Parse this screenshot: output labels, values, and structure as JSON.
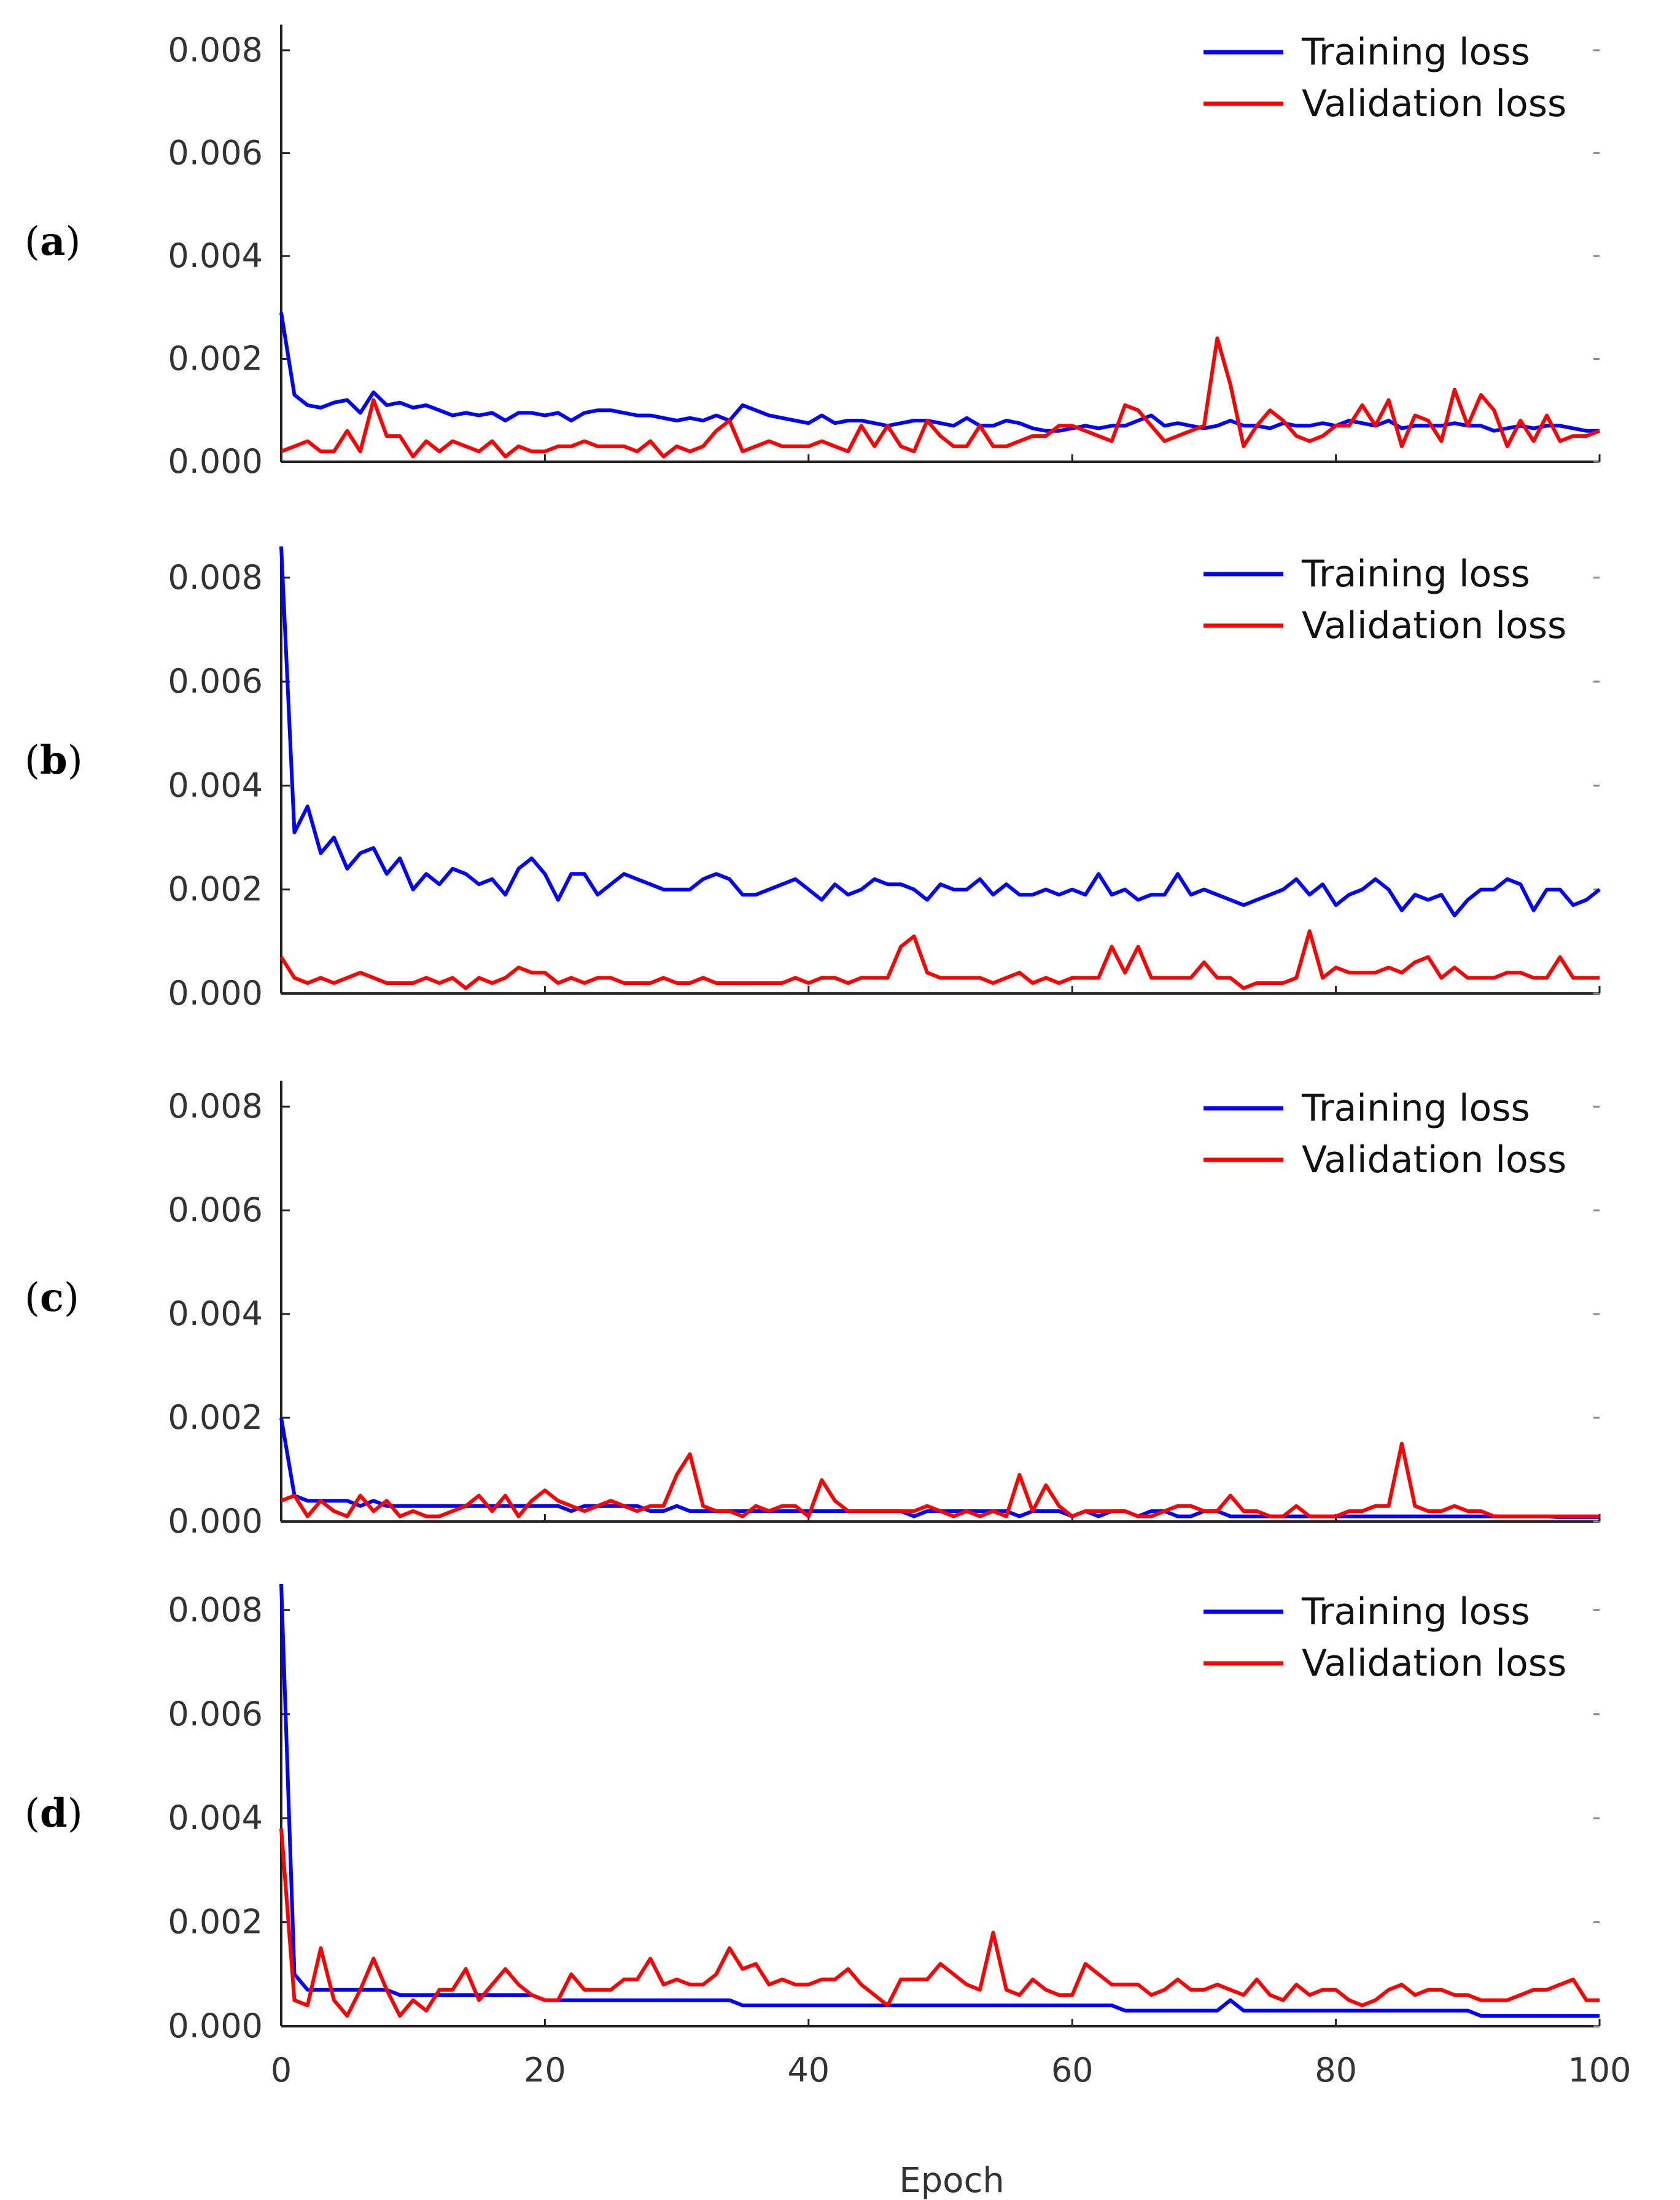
{
  "figure": {
    "x_axis_title": "Epoch",
    "colors": {
      "training": "#0000ff",
      "validation": "#ff0000",
      "axis": "#222222"
    }
  },
  "chart_data": [
    {
      "type": "line",
      "panel_label": "a",
      "xlim": [
        0,
        100
      ],
      "ylim": [
        0,
        0.0085
      ],
      "y_ticks": [
        "0.000",
        "0.002",
        "0.004",
        "0.006",
        "0.008"
      ],
      "x_ticks": [],
      "legend": {
        "position": "top-right",
        "entries": [
          "Training loss",
          "Validation loss"
        ]
      },
      "series": [
        {
          "name": "Training loss",
          "color": "#0000ff",
          "values": [
            0.0029,
            0.0013,
            0.0011,
            0.00105,
            0.00115,
            0.0012,
            0.00095,
            0.00135,
            0.0011,
            0.00115,
            0.00105,
            0.0011,
            0.001,
            0.0009,
            0.00095,
            0.0009,
            0.00095,
            0.0008,
            0.00095,
            0.00095,
            0.0009,
            0.00095,
            0.0008,
            0.00095,
            0.001,
            0.001,
            0.00095,
            0.0009,
            0.0009,
            0.00085,
            0.0008,
            0.00085,
            0.0008,
            0.0009,
            0.0008,
            0.0011,
            0.001,
            0.0009,
            0.00085,
            0.0008,
            0.00075,
            0.0009,
            0.00075,
            0.0008,
            0.0008,
            0.00075,
            0.0007,
            0.00075,
            0.0008,
            0.0008,
            0.00075,
            0.0007,
            0.00085,
            0.0007,
            0.0007,
            0.0008,
            0.00075,
            0.00065,
            0.0006,
            0.0006,
            0.00065,
            0.0007,
            0.00065,
            0.0007,
            0.0007,
            0.0008,
            0.0009,
            0.0007,
            0.00075,
            0.0007,
            0.00065,
            0.0007,
            0.0008,
            0.0007,
            0.0007,
            0.00065,
            0.00075,
            0.0007,
            0.0007,
            0.00075,
            0.0007,
            0.0008,
            0.00075,
            0.0007,
            0.0008,
            0.00065,
            0.0007,
            0.0007,
            0.0007,
            0.00075,
            0.0007,
            0.0007,
            0.0006,
            0.00065,
            0.0007,
            0.00065,
            0.0007,
            0.0007,
            0.00065,
            0.0006,
            0.0006
          ]
        },
        {
          "name": "Validation loss",
          "color": "#ff0000",
          "values": [
            0.0002,
            0.0003,
            0.0004,
            0.0002,
            0.0002,
            0.0006,
            0.0002,
            0.0012,
            0.0005,
            0.0005,
            0.0001,
            0.0004,
            0.0002,
            0.0004,
            0.0003,
            0.0002,
            0.0004,
            0.0001,
            0.0003,
            0.0002,
            0.0002,
            0.0003,
            0.0003,
            0.0004,
            0.0003,
            0.0003,
            0.0003,
            0.0002,
            0.0004,
            0.0001,
            0.0003,
            0.0002,
            0.0003,
            0.0006,
            0.0008,
            0.0002,
            0.0003,
            0.0004,
            0.0003,
            0.0003,
            0.0003,
            0.0004,
            0.0003,
            0.0002,
            0.0007,
            0.0003,
            0.0007,
            0.0003,
            0.0002,
            0.0008,
            0.0005,
            0.0003,
            0.0003,
            0.0007,
            0.0003,
            0.0003,
            0.0004,
            0.0005,
            0.0005,
            0.0007,
            0.0007,
            0.0006,
            0.0005,
            0.0004,
            0.0011,
            0.001,
            0.0007,
            0.0004,
            0.0005,
            0.0006,
            0.0007,
            0.0024,
            0.0015,
            0.0003,
            0.0007,
            0.001,
            0.0008,
            0.0005,
            0.0004,
            0.0005,
            0.0007,
            0.0007,
            0.0011,
            0.0007,
            0.0012,
            0.0003,
            0.0009,
            0.0008,
            0.0004,
            0.0014,
            0.0007,
            0.0013,
            0.001,
            0.0003,
            0.0008,
            0.0004,
            0.0009,
            0.0004,
            0.0005,
            0.0005,
            0.0006
          ]
        }
      ]
    },
    {
      "type": "line",
      "panel_label": "b",
      "xlim": [
        0,
        100
      ],
      "ylim": [
        0,
        0.0086
      ],
      "y_ticks": [
        "0.000",
        "0.002",
        "0.004",
        "0.006",
        "0.008"
      ],
      "x_ticks": [],
      "legend": {
        "position": "top-right",
        "entries": [
          "Training loss",
          "Validation loss"
        ]
      },
      "series": [
        {
          "name": "Training loss",
          "color": "#0000ff",
          "values": [
            0.0086,
            0.0031,
            0.0036,
            0.0027,
            0.003,
            0.0024,
            0.0027,
            0.0028,
            0.0023,
            0.0026,
            0.002,
            0.0023,
            0.0021,
            0.0024,
            0.0023,
            0.0021,
            0.0022,
            0.0019,
            0.0024,
            0.0026,
            0.0023,
            0.0018,
            0.0023,
            0.0023,
            0.0019,
            0.0021,
            0.0023,
            0.0022,
            0.0021,
            0.002,
            0.002,
            0.002,
            0.0022,
            0.0023,
            0.0022,
            0.0019,
            0.0019,
            0.002,
            0.0021,
            0.0022,
            0.002,
            0.0018,
            0.0021,
            0.0019,
            0.002,
            0.0022,
            0.0021,
            0.0021,
            0.002,
            0.0018,
            0.0021,
            0.002,
            0.002,
            0.0022,
            0.0019,
            0.0021,
            0.0019,
            0.0019,
            0.002,
            0.0019,
            0.002,
            0.0019,
            0.0023,
            0.0019,
            0.002,
            0.0018,
            0.0019,
            0.0019,
            0.0023,
            0.0019,
            0.002,
            0.0019,
            0.0018,
            0.0017,
            0.0018,
            0.0019,
            0.002,
            0.0022,
            0.0019,
            0.0021,
            0.0017,
            0.0019,
            0.002,
            0.0022,
            0.002,
            0.0016,
            0.0019,
            0.0018,
            0.0019,
            0.0015,
            0.0018,
            0.002,
            0.002,
            0.0022,
            0.0021,
            0.0016,
            0.002,
            0.002,
            0.0017,
            0.0018,
            0.002
          ]
        },
        {
          "name": "Validation loss",
          "color": "#ff0000",
          "values": [
            0.0007,
            0.0003,
            0.0002,
            0.0003,
            0.0002,
            0.0003,
            0.0004,
            0.0003,
            0.0002,
            0.0002,
            0.0002,
            0.0003,
            0.0002,
            0.0003,
            0.0001,
            0.0003,
            0.0002,
            0.0003,
            0.0005,
            0.0004,
            0.0004,
            0.0002,
            0.0003,
            0.0002,
            0.0003,
            0.0003,
            0.0002,
            0.0002,
            0.0002,
            0.0003,
            0.0002,
            0.0002,
            0.0003,
            0.0002,
            0.0002,
            0.0002,
            0.0002,
            0.0002,
            0.0002,
            0.0003,
            0.0002,
            0.0003,
            0.0003,
            0.0002,
            0.0003,
            0.0003,
            0.0003,
            0.0009,
            0.0011,
            0.0004,
            0.0003,
            0.0003,
            0.0003,
            0.0003,
            0.0002,
            0.0003,
            0.0004,
            0.0002,
            0.0003,
            0.0002,
            0.0003,
            0.0003,
            0.0003,
            0.0009,
            0.0004,
            0.0009,
            0.0003,
            0.0003,
            0.0003,
            0.0003,
            0.0006,
            0.0003,
            0.0003,
            0.0001,
            0.0002,
            0.0002,
            0.0002,
            0.0003,
            0.0012,
            0.0003,
            0.0005,
            0.0004,
            0.0004,
            0.0004,
            0.0005,
            0.0004,
            0.0006,
            0.0007,
            0.0003,
            0.0005,
            0.0003,
            0.0003,
            0.0003,
            0.0004,
            0.0004,
            0.0003,
            0.0003,
            0.0007,
            0.0003,
            0.0003,
            0.0003
          ]
        }
      ]
    },
    {
      "type": "line",
      "panel_label": "c",
      "xlim": [
        0,
        100
      ],
      "ylim": [
        0,
        0.0085
      ],
      "y_ticks": [
        "0.000",
        "0.002",
        "0.004",
        "0.006",
        "0.008"
      ],
      "x_ticks": [],
      "legend": {
        "position": "top-right",
        "entries": [
          "Training loss",
          "Validation loss"
        ]
      },
      "series": [
        {
          "name": "Training loss",
          "color": "#0000ff",
          "values": [
            0.002,
            0.0005,
            0.0004,
            0.0004,
            0.0004,
            0.0004,
            0.0003,
            0.0004,
            0.0003,
            0.0003,
            0.0003,
            0.0003,
            0.0003,
            0.0003,
            0.0003,
            0.0003,
            0.0003,
            0.0003,
            0.0003,
            0.0003,
            0.0003,
            0.0003,
            0.0002,
            0.0003,
            0.0003,
            0.0003,
            0.0003,
            0.0003,
            0.0002,
            0.0002,
            0.0003,
            0.0002,
            0.0002,
            0.0002,
            0.0002,
            0.0002,
            0.0002,
            0.0002,
            0.0002,
            0.0002,
            0.0002,
            0.0002,
            0.0002,
            0.0002,
            0.0002,
            0.0002,
            0.0002,
            0.0002,
            0.0001,
            0.0002,
            0.0002,
            0.0002,
            0.0002,
            0.0002,
            0.0002,
            0.0002,
            0.0001,
            0.0002,
            0.0002,
            0.0002,
            0.0001,
            0.0002,
            0.0001,
            0.0002,
            0.0002,
            0.0001,
            0.0002,
            0.0002,
            0.0001,
            0.0001,
            0.0002,
            0.0002,
            0.0001,
            0.0001,
            0.0001,
            0.0001,
            0.0001,
            0.0001,
            0.0001,
            0.0001,
            0.0001,
            0.0001,
            0.0001,
            0.0001,
            0.0001,
            0.0001,
            0.0001,
            0.0001,
            0.0001,
            0.0001,
            0.0001,
            0.0001,
            0.0001,
            0.0001,
            0.0001,
            0.0001,
            0.0001,
            8e-05,
            8e-05,
            8e-05,
            8e-05
          ]
        },
        {
          "name": "Validation loss",
          "color": "#ff0000",
          "values": [
            0.0004,
            0.0005,
            0.0001,
            0.0004,
            0.0002,
            0.0001,
            0.0005,
            0.0002,
            0.0004,
            0.0001,
            0.0002,
            0.0001,
            0.0001,
            0.0002,
            0.0003,
            0.0005,
            0.0002,
            0.0005,
            0.0001,
            0.0004,
            0.0006,
            0.0004,
            0.0003,
            0.0002,
            0.0003,
            0.0004,
            0.0003,
            0.0002,
            0.0003,
            0.0003,
            0.0009,
            0.0013,
            0.0003,
            0.0002,
            0.0002,
            0.0001,
            0.0003,
            0.0002,
            0.0003,
            0.0003,
            0.0001,
            0.0008,
            0.0004,
            0.0002,
            0.0002,
            0.0002,
            0.0002,
            0.0002,
            0.0002,
            0.0003,
            0.0002,
            0.0001,
            0.0002,
            0.0001,
            0.0002,
            0.0001,
            0.0009,
            0.0002,
            0.0007,
            0.0003,
            0.0001,
            0.0002,
            0.0002,
            0.0002,
            0.0002,
            0.0001,
            0.0001,
            0.0002,
            0.0003,
            0.0003,
            0.0002,
            0.0002,
            0.0005,
            0.0002,
            0.0002,
            0.0001,
            0.0001,
            0.0003,
            0.0001,
            0.0001,
            0.0001,
            0.0002,
            0.0002,
            0.0003,
            0.0003,
            0.0015,
            0.0003,
            0.0002,
            0.0002,
            0.0003,
            0.0002,
            0.0002,
            0.0001,
            0.0001,
            0.0001,
            0.0001,
            0.0001,
            0.0001,
            0.0001,
            0.0001,
            0.0001
          ]
        }
      ]
    },
    {
      "type": "line",
      "panel_label": "d",
      "xlim": [
        0,
        100
      ],
      "ylim": [
        0,
        0.0085
      ],
      "y_ticks": [
        "0.000",
        "0.002",
        "0.004",
        "0.006",
        "0.008"
      ],
      "x_ticks": [
        "0",
        "20",
        "40",
        "60",
        "80",
        "100"
      ],
      "xlabel": "Epoch",
      "legend": {
        "position": "top-right",
        "entries": [
          "Training loss",
          "Validation loss"
        ]
      },
      "series": [
        {
          "name": "Training loss",
          "color": "#0000ff",
          "values": [
            0.0085,
            0.001,
            0.0007,
            0.0007,
            0.0007,
            0.0007,
            0.0007,
            0.0007,
            0.0007,
            0.0006,
            0.0006,
            0.0006,
            0.0006,
            0.0006,
            0.0006,
            0.0006,
            0.0006,
            0.0006,
            0.0006,
            0.0006,
            0.0005,
            0.0005,
            0.0005,
            0.0005,
            0.0005,
            0.0005,
            0.0005,
            0.0005,
            0.0005,
            0.0005,
            0.0005,
            0.0005,
            0.0005,
            0.0005,
            0.0005,
            0.0004,
            0.0004,
            0.0004,
            0.0004,
            0.0004,
            0.0004,
            0.0004,
            0.0004,
            0.0004,
            0.0004,
            0.0004,
            0.0004,
            0.0004,
            0.0004,
            0.0004,
            0.0004,
            0.0004,
            0.0004,
            0.0004,
            0.0004,
            0.0004,
            0.0004,
            0.0004,
            0.0004,
            0.0004,
            0.0004,
            0.0004,
            0.0004,
            0.0004,
            0.0003,
            0.0003,
            0.0003,
            0.0003,
            0.0003,
            0.0003,
            0.0003,
            0.0003,
            0.0005,
            0.0003,
            0.0003,
            0.0003,
            0.0003,
            0.0003,
            0.0003,
            0.0003,
            0.0003,
            0.0003,
            0.0003,
            0.0003,
            0.0003,
            0.0003,
            0.0003,
            0.0003,
            0.0003,
            0.0003,
            0.0003,
            0.0002,
            0.0002,
            0.0002,
            0.0002,
            0.0002,
            0.0002,
            0.0002,
            0.0002,
            0.0002,
            0.0002
          ]
        },
        {
          "name": "Validation loss",
          "color": "#ff0000",
          "values": [
            0.0038,
            0.0005,
            0.0004,
            0.0015,
            0.0005,
            0.0002,
            0.0007,
            0.0013,
            0.0007,
            0.0002,
            0.0005,
            0.0003,
            0.0007,
            0.0007,
            0.0011,
            0.0005,
            0.0008,
            0.0011,
            0.0008,
            0.0006,
            0.0005,
            0.0005,
            0.001,
            0.0007,
            0.0007,
            0.0007,
            0.0009,
            0.0009,
            0.0013,
            0.0008,
            0.0009,
            0.0008,
            0.0008,
            0.001,
            0.0015,
            0.0011,
            0.0012,
            0.0008,
            0.0009,
            0.0008,
            0.0008,
            0.0009,
            0.0009,
            0.0011,
            0.0008,
            0.0006,
            0.0004,
            0.0009,
            0.0009,
            0.0009,
            0.0012,
            0.001,
            0.0008,
            0.0007,
            0.0018,
            0.0007,
            0.0006,
            0.0009,
            0.0007,
            0.0006,
            0.0006,
            0.0012,
            0.001,
            0.0008,
            0.0008,
            0.0008,
            0.0006,
            0.0007,
            0.0009,
            0.0007,
            0.0007,
            0.0008,
            0.0007,
            0.0006,
            0.0009,
            0.0006,
            0.0005,
            0.0008,
            0.0006,
            0.0007,
            0.0007,
            0.0005,
            0.0004,
            0.0005,
            0.0007,
            0.0008,
            0.0006,
            0.0007,
            0.0007,
            0.0006,
            0.0006,
            0.0005,
            0.0005,
            0.0005,
            0.0006,
            0.0007,
            0.0007,
            0.0008,
            0.0009,
            0.0005,
            0.0005
          ]
        }
      ]
    }
  ]
}
